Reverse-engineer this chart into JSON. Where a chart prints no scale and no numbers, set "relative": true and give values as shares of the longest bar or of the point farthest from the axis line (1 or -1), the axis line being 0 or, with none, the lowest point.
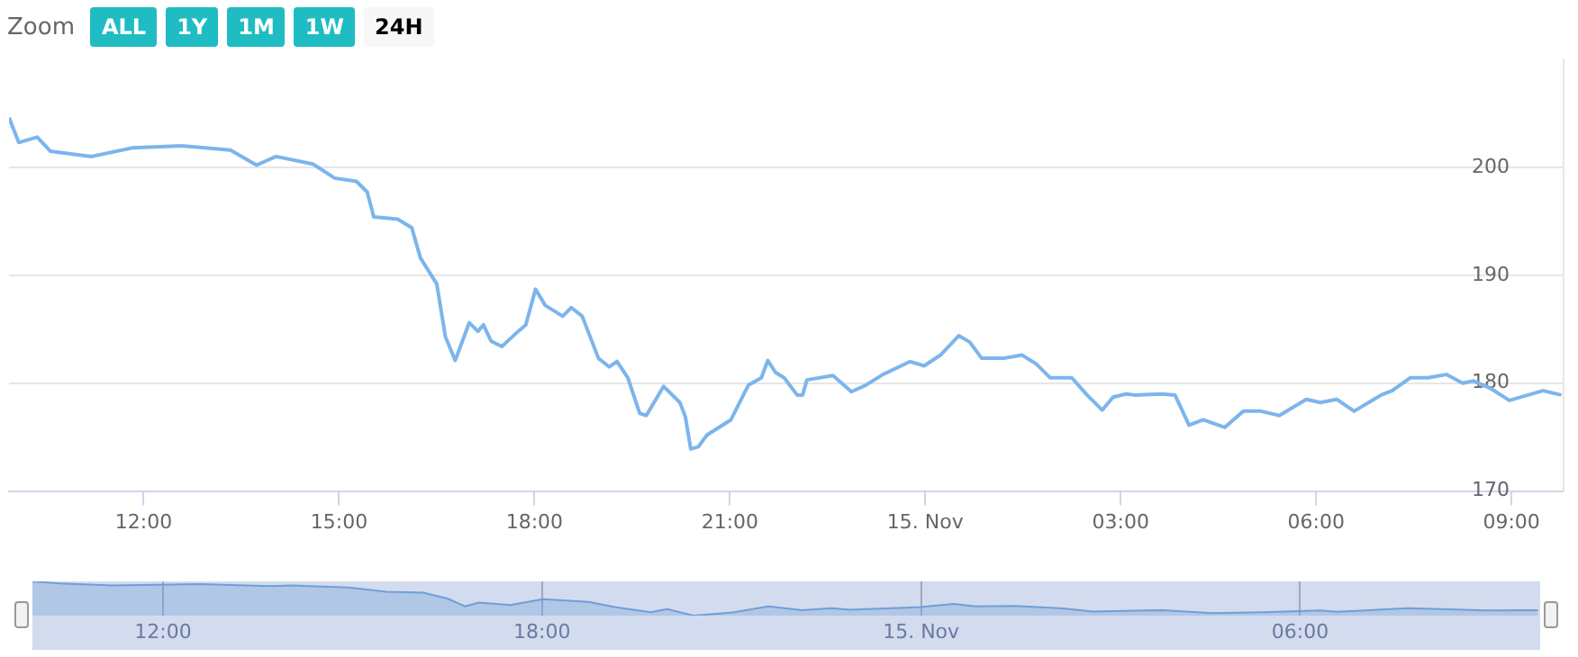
{
  "chart_data": [
    {
      "type": "line",
      "color": "#7cb5ec",
      "marker": "none",
      "grid": "y",
      "legend": false,
      "annotations": [
        "Zoom",
        "ALL",
        "1Y",
        "1M",
        "1W",
        "24H"
      ],
      "x": [
        "--11-14T09:56",
        "--11-14T10:05",
        "--11-14T10:22",
        "--11-14T10:34",
        "--11-14T11:12",
        "--11-14T11:50",
        "--11-14T12:35",
        "--11-14T13:20",
        "--11-14T13:44",
        "--11-14T14:02",
        "--11-14T14:36",
        "--11-14T14:56",
        "--11-14T15:16",
        "--11-14T15:26",
        "--11-14T15:32",
        "--11-14T15:54",
        "--11-14T16:07",
        "--11-14T16:15",
        "--11-14T16:30",
        "--11-14T16:38",
        "--11-14T16:47",
        "--11-14T17:00",
        "--11-14T17:08",
        "--11-14T17:13",
        "--11-14T17:20",
        "--11-14T17:30",
        "--11-14T17:45",
        "--11-14T17:52",
        "--11-14T18:01",
        "--11-14T18:10",
        "--11-14T18:26",
        "--11-14T18:34",
        "--11-14T18:44",
        "--11-14T18:59",
        "--11-14T19:09",
        "--11-14T19:16",
        "--11-14T19:26",
        "--11-14T19:37",
        "--11-14T19:43",
        "--11-14T19:59",
        "--11-14T20:14",
        "--11-14T20:19",
        "--11-14T20:24",
        "--11-14T20:31",
        "--11-14T20:39",
        "--11-14T21:01",
        "--11-14T21:17",
        "--11-14T21:29",
        "--11-14T21:35",
        "--11-14T21:42",
        "--11-14T21:50",
        "--11-14T22:02",
        "--11-14T22:07",
        "--11-14T22:11",
        "--11-14T22:35",
        "--11-14T22:52",
        "--11-14T23:05",
        "--11-14T23:21",
        "--11-14T23:46",
        "--11-14T23:59",
        "--11-15T00:14",
        "--11-15T00:31",
        "--11-15T00:41",
        "--11-15T00:52",
        "--11-15T01:12",
        "--11-15T01:29",
        "--11-15T01:42",
        "--11-15T01:55",
        "--11-15T02:02",
        "--11-15T02:15",
        "--11-15T02:29",
        "--11-15T02:43",
        "--11-15T02:53",
        "--11-15T03:05",
        "--11-15T03:13",
        "--11-15T03:38",
        "--11-15T03:50",
        "--11-15T04:03",
        "--11-15T04:16",
        "--11-15T04:36",
        "--11-15T04:53",
        "--11-15T05:09",
        "--11-15T05:26",
        "--11-15T05:51",
        "--11-15T06:04",
        "--11-15T06:19",
        "--11-15T06:35",
        "--11-15T07:00",
        "--11-15T07:10",
        "--11-15T07:27",
        "--11-15T07:43",
        "--11-15T08:00",
        "--11-15T08:15",
        "--11-15T08:25",
        "--11-15T08:41",
        "--11-15T08:58",
        "--11-15T09:29",
        "--11-15T09:46"
      ],
      "values": [
        204.6,
        202.3,
        202.8,
        201.5,
        201.0,
        201.8,
        202.0,
        201.6,
        200.2,
        201.0,
        200.3,
        199.0,
        198.7,
        197.7,
        195.4,
        195.2,
        194.4,
        191.6,
        189.2,
        184.3,
        182.1,
        185.6,
        184.8,
        185.4,
        183.9,
        183.4,
        184.8,
        185.4,
        188.7,
        187.2,
        186.2,
        187.0,
        186.2,
        182.3,
        181.5,
        182.0,
        180.5,
        177.2,
        177.0,
        179.7,
        178.2,
        176.9,
        173.9,
        174.1,
        175.2,
        176.6,
        179.8,
        180.5,
        182.1,
        181.0,
        180.5,
        178.9,
        178.9,
        180.3,
        180.7,
        179.2,
        179.8,
        180.8,
        182.0,
        181.6,
        182.6,
        184.4,
        183.8,
        182.3,
        182.3,
        182.6,
        181.8,
        180.5,
        180.5,
        180.5,
        178.9,
        177.5,
        178.7,
        179.0,
        178.9,
        179.0,
        178.9,
        176.1,
        176.6,
        175.9,
        177.4,
        177.4,
        177.0,
        178.5,
        178.2,
        178.5,
        177.4,
        178.9,
        179.3,
        180.5,
        180.5,
        180.8,
        180.0,
        180.2,
        179.5,
        178.4,
        179.3,
        178.9
      ],
      "xlim": [
        "--11-14T09:56",
        "--11-15T09:48"
      ],
      "ylim": [
        170,
        210
      ],
      "xticks": [
        {
          "value": "--11-14T12:00",
          "label": "12:00"
        },
        {
          "value": "--11-14T15:00",
          "label": "15:00"
        },
        {
          "value": "--11-14T18:00",
          "label": "18:00"
        },
        {
          "value": "--11-14T21:00",
          "label": "21:00"
        },
        {
          "value": "--11-15T00:00",
          "label": "15. Nov"
        },
        {
          "value": "--11-15T03:00",
          "label": "03:00"
        },
        {
          "value": "--11-15T06:00",
          "label": "06:00"
        },
        {
          "value": "--11-15T09:00",
          "label": "09:00"
        }
      ],
      "yticks": [
        170,
        180,
        190,
        200
      ]
    },
    {
      "type": "area",
      "color": "#6f9fd8",
      "marker": "none",
      "grid": "x",
      "legend": false,
      "tick_labels": "x",
      "relative": true,
      "x": [
        "--11-14T09:56",
        "--11-14T10:22",
        "--11-14T11:12",
        "--11-14T12:35",
        "--11-14T13:44",
        "--11-14T14:02",
        "--11-14T14:56",
        "--11-14T15:32",
        "--11-14T16:07",
        "--11-14T16:30",
        "--11-14T16:47",
        "--11-14T17:00",
        "--11-14T17:30",
        "--11-14T18:01",
        "--11-14T18:44",
        "--11-14T19:09",
        "--11-14T19:43",
        "--11-14T19:59",
        "--11-14T20:24",
        "--11-14T21:01",
        "--11-14T21:35",
        "--11-14T22:07",
        "--11-14T22:35",
        "--11-14T22:52",
        "--11-14T23:59",
        "--11-15T00:31",
        "--11-15T00:52",
        "--11-15T01:29",
        "--11-15T02:15",
        "--11-15T02:43",
        "--11-15T03:50",
        "--11-15T04:36",
        "--11-15T05:26",
        "--11-15T06:19",
        "--11-15T06:35",
        "--11-15T07:43",
        "--11-15T08:58",
        "--11-15T09:46"
      ],
      "values": [
        1.0,
        0.94,
        0.88,
        0.92,
        0.86,
        0.88,
        0.82,
        0.7,
        0.67,
        0.5,
        0.27,
        0.38,
        0.31,
        0.48,
        0.4,
        0.25,
        0.1,
        0.19,
        0.0,
        0.09,
        0.27,
        0.16,
        0.22,
        0.17,
        0.25,
        0.34,
        0.27,
        0.28,
        0.21,
        0.12,
        0.16,
        0.07,
        0.1,
        0.15,
        0.11,
        0.22,
        0.15,
        0.16
      ],
      "xlim": [
        "--11-14T09:56",
        "--11-15T09:48"
      ],
      "xticks": [
        {
          "value": "--11-14T12:00",
          "label": "12:00"
        },
        {
          "value": "--11-14T18:00",
          "label": "18:00"
        },
        {
          "value": "--11-15T00:00",
          "label": "15. Nov"
        },
        {
          "value": "--11-15T06:00",
          "label": "06:00"
        }
      ]
    }
  ]
}
